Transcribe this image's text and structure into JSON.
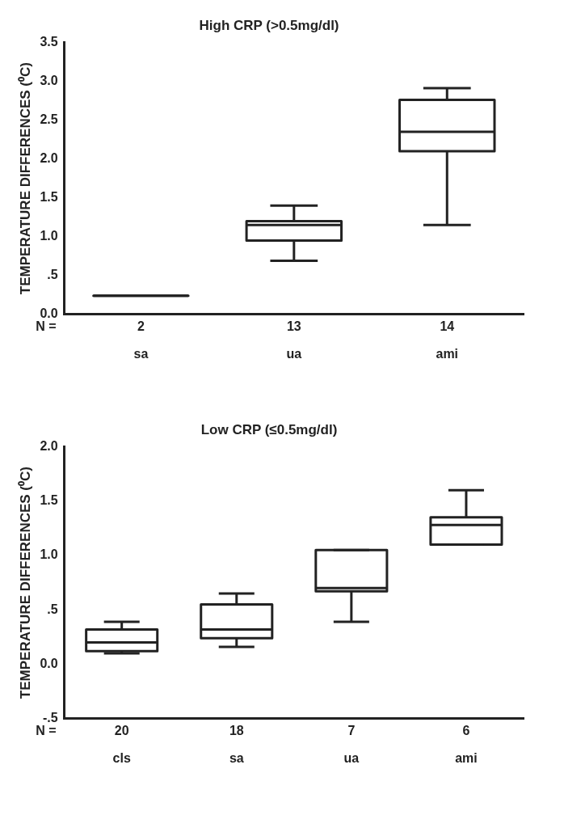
{
  "chart_data": [
    {
      "type": "box",
      "title": "High CRP (>0.5mg/dl)",
      "ylabel": "TEMPERATURE DIFFERENCES (⁰C)",
      "categories": [
        "sa",
        "ua",
        "ami"
      ],
      "boxes": [
        {
          "low": 0.24,
          "q1": 0.24,
          "median": 0.24,
          "q3": 0.24,
          "high": 0.24
        },
        {
          "low": 0.69,
          "q1": 0.95,
          "median": 1.15,
          "q3": 1.2,
          "high": 1.4
        },
        {
          "low": 1.15,
          "q1": 2.1,
          "median": 2.35,
          "q3": 2.76,
          "high": 2.91
        }
      ],
      "color": "#222222",
      "ylim": [
        0,
        3.5
      ],
      "yticks": [
        {
          "value": 0,
          "label": "0.0"
        },
        {
          "value": 0.5,
          "label": ".5"
        },
        {
          "value": 1,
          "label": "1.0"
        },
        {
          "value": 1.5,
          "label": "1.5"
        },
        {
          "value": 2,
          "label": "2.0"
        },
        {
          "value": 2.5,
          "label": "2.5"
        },
        {
          "value": 3,
          "label": "3.0"
        },
        {
          "value": 3.5,
          "label": "3.5"
        }
      ],
      "grid": false,
      "annotations": [
        "N =",
        "2",
        "13",
        "14"
      ]
    },
    {
      "type": "box",
      "title": "Low CRP (≤0.5mg/dl)",
      "ylabel": "TEMPERATURE DIFFERENCES (⁰C)",
      "categories": [
        "cls",
        "sa",
        "ua",
        "ami"
      ],
      "boxes": [
        {
          "low": 0.1,
          "q1": 0.12,
          "median": 0.2,
          "q3": 0.32,
          "high": 0.39
        },
        {
          "low": 0.16,
          "q1": 0.24,
          "median": 0.32,
          "q3": 0.55,
          "high": 0.65
        },
        {
          "low": 0.39,
          "q1": 0.67,
          "median": 0.7,
          "q3": 1.05,
          "high": 1.05
        },
        {
          "low": 1.1,
          "q1": 1.1,
          "median": 1.28,
          "q3": 1.35,
          "high": 1.6
        }
      ],
      "color": "#222222",
      "ylim": [
        -0.5,
        2
      ],
      "yticks": [
        {
          "value": -0.5,
          "label": "-.5"
        },
        {
          "value": 0,
          "label": "0.0"
        },
        {
          "value": 0.5,
          "label": ".5"
        },
        {
          "value": 1,
          "label": "1.0"
        },
        {
          "value": 1.5,
          "label": "1.5"
        },
        {
          "value": 2,
          "label": "2.0"
        }
      ],
      "grid": false,
      "annotations": [
        "N =",
        "20",
        "18",
        "7",
        "6"
      ]
    }
  ]
}
